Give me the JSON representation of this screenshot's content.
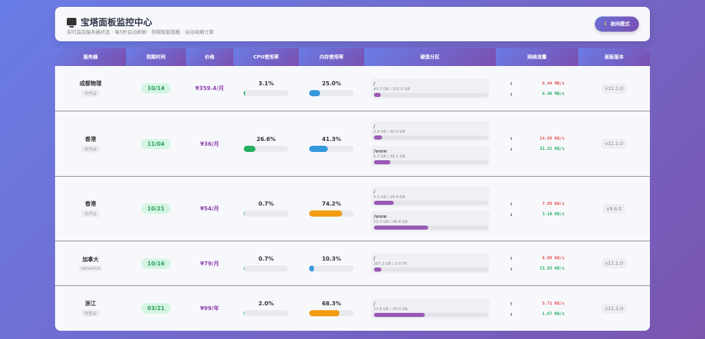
{
  "header": {
    "title": "宝塔面板监控中心",
    "subtitle": "实时监控服务器状态 · 每5秒自动刷新 · 到期智能提醒 · 自动续期计算",
    "night_mode_label": "夜间模式"
  },
  "table": {
    "columns": [
      "服务器",
      "到期时间",
      "价格",
      "CPU使用率",
      "内存使用率",
      "硬盘分区",
      "网络流量",
      "面板版本"
    ],
    "rows": [
      {
        "name": "成都物理",
        "provider": "玖伴云",
        "expiry": "10/14",
        "price": "¥359.4/月",
        "cpu": "3.1%",
        "cpu_value": 3.1,
        "mem": "25.0%",
        "mem_value": 25.0,
        "disks": [
          {
            "mount": "/",
            "size": "43.7 GB / 701.5 GB",
            "pct": 6.2
          }
        ],
        "up": "6.44 MB/s",
        "down": "6.46 MB/s",
        "version": "v11.1.0"
      },
      {
        "name": "香港",
        "provider": "玖伴云",
        "expiry": "11/04",
        "price": "¥36/月",
        "cpu": "26.6%",
        "cpu_value": 26.6,
        "mem": "41.3%",
        "mem_value": 41.3,
        "disks": [
          {
            "mount": "/",
            "size": "2.9 GB / 40.0 GB",
            "pct": 7.3
          },
          {
            "mount": "/www",
            "size": "5.7 GB / 39.1 GB",
            "pct": 14.6
          }
        ],
        "up": "14.68 KB/s",
        "down": "31.31 KB/s",
        "version": "v11.1.0"
      },
      {
        "name": "香港",
        "provider": "玖伴云",
        "expiry": "10/21",
        "price": "¥54/月",
        "cpu": "0.7%",
        "cpu_value": 0.7,
        "mem": "74.2%",
        "mem_value": 74.2,
        "disks": [
          {
            "mount": "/",
            "size": "5.1 GB / 28.9 GB",
            "pct": 17.6
          },
          {
            "mount": "/www",
            "size": "23.3 GB / 48.9 GB",
            "pct": 47.6
          }
        ],
        "up": "7.89 KB/s",
        "down": "3.10 KB/s",
        "version": "v9.6.0"
      },
      {
        "name": "加拿大",
        "provider": "servarica",
        "expiry": "10/16",
        "price": "¥79/月",
        "cpu": "0.7%",
        "cpu_value": 0.7,
        "mem": "10.3%",
        "mem_value": 10.3,
        "disks": [
          {
            "mount": "/",
            "size": "267.3 GB / 3.9 TB",
            "pct": 6.7
          }
        ],
        "up": "8.09 KB/s",
        "down": "15.83 KB/s",
        "version": "v11.1.0"
      },
      {
        "name": "浙江",
        "provider": "阿里云",
        "expiry": "03/21",
        "price": "¥99/年",
        "cpu": "2.0%",
        "cpu_value": 2.0,
        "mem": "68.3%",
        "mem_value": 68.3,
        "disks": [
          {
            "mount": "/",
            "size": "17.6 GB / 39.0 GB",
            "pct": 45.1
          }
        ],
        "up": "5.71 KB/s",
        "down": "1.67 KB/s",
        "version": "v11.1.0"
      }
    ]
  },
  "colors": {
    "cpu": "#27ae60",
    "mem_low": "#3498db",
    "mem_high": "#f39c12",
    "disk": "#9b59b6",
    "up": "#e05555",
    "down": "#27ae60",
    "price": "#8e44ad"
  }
}
